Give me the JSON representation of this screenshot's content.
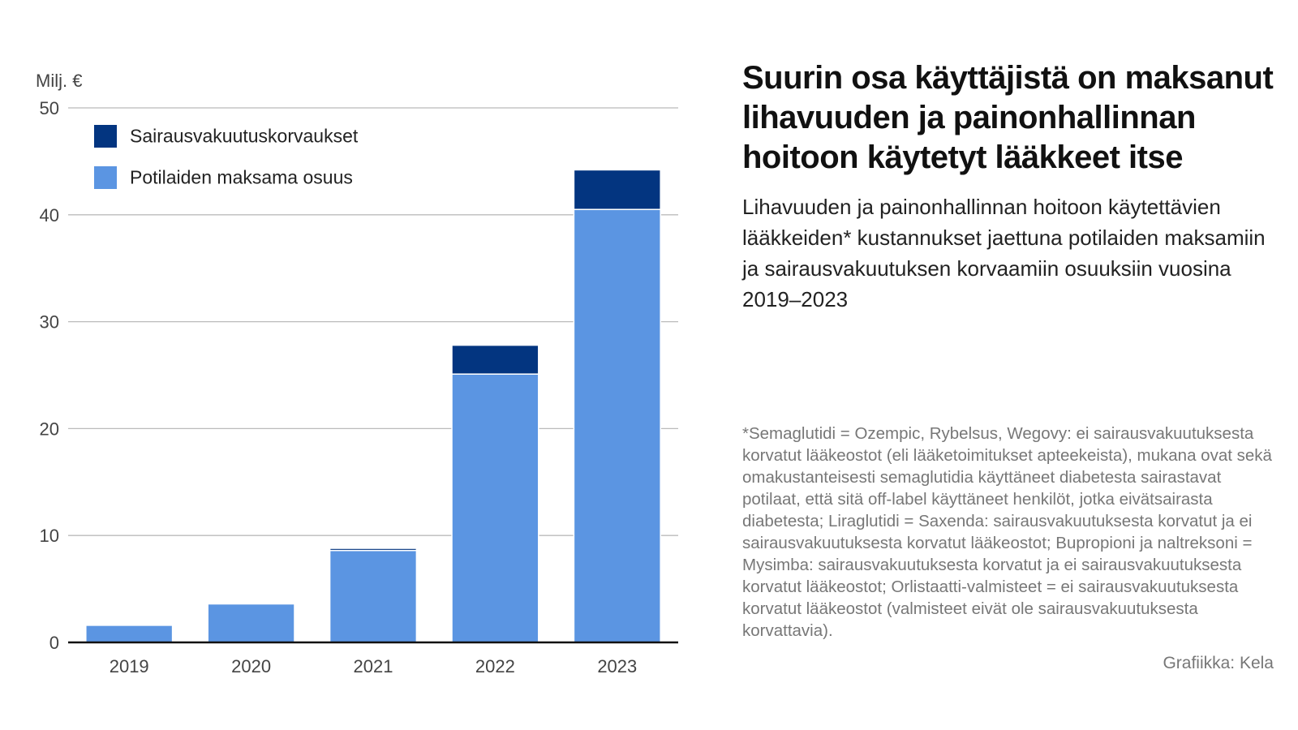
{
  "title": "Suurin osa käyttäjistä on maksanut lihavuuden ja painonhallinnan hoitoon käytetyt lääkkeet itse",
  "subtitle": "Lihavuuden ja painonhallinnan hoitoon käytettävien lääkkeiden* kustannukset jaettuna potilaiden maksamiin ja sairausvakuutuksen korvaamiin osuuksiin vuosina 2019–2023",
  "note": "*Semaglutidi = Ozempic, Rybelsus, Wegovy: ei sairausvakuutuksesta korvatut lääkeostot (eli lääketoimitukset apteekeista), mukana ovat sekä omakustanteisesti semaglutidia käyttäneet diabetesta sairastavat potilaat, että sitä off-label käyttäneet henkilöt, jotka eivätsairasta diabetesta; Liraglutidi = Saxenda: sairausvakuutuksesta korvatut ja ei sairausvakuutuksesta korvatut lääkeostot; Bupropioni ja naltreksoni = Mysimba: sairausvakuutuksesta korvatut ja ei sairausvakuutuksesta korvatut lääkeostot; Orlistaatti-valmisteet = ei sairausvakuutuksesta korvatut lääkeostot (valmisteet eivät ole sairausvakuutuksesta korvattavia).",
  "credit": "Grafiikka: Kela",
  "chart_data": {
    "type": "bar",
    "stacked": true,
    "ylabel": "Milj. €",
    "ylim": [
      0,
      50
    ],
    "yticks": [
      "0",
      "10",
      "20",
      "30",
      "40",
      "50"
    ],
    "grid": true,
    "legend_placement": "top-left",
    "categories": [
      "2019",
      "2020",
      "2021",
      "2022",
      "2023"
    ],
    "series": [
      {
        "name": "Potilaiden maksama osuus",
        "color": "#5b95e2",
        "values": [
          1.6,
          3.6,
          8.6,
          25.1,
          40.5
        ]
      },
      {
        "name": "Sairausvakuutuskorvaukset",
        "color": "#033580",
        "values": [
          0,
          0,
          0.2,
          2.7,
          3.7
        ]
      }
    ]
  }
}
